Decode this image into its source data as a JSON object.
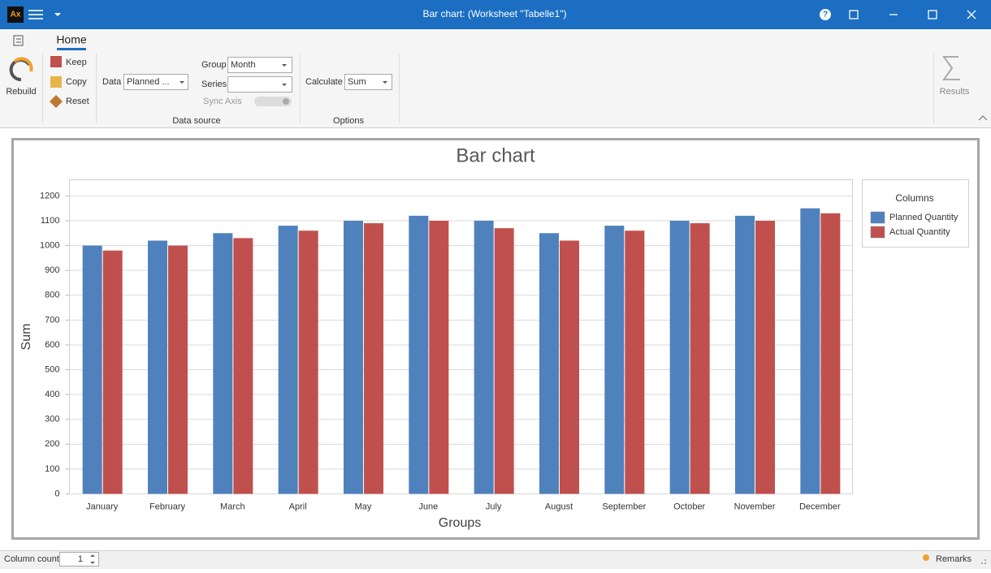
{
  "title_bar": {
    "app_icon": "Ax",
    "title": "Bar chart:  (Worksheet \"Tabelle1\")",
    "help": "?"
  },
  "ribbon": {
    "tab": "Home",
    "rebuild": "Rebuild",
    "keep": "Keep",
    "copy": "Copy",
    "reset": "Reset",
    "data_label": "Data",
    "data_value": "Planned ...",
    "group_label": "Group",
    "group_value": "Month",
    "series_label": "Series",
    "sync_axis": "Sync Axis",
    "calculate_label": "Calculate",
    "calculate_value": "Sum",
    "data_source_group": "Data source",
    "options_group": "Options",
    "results": "Results"
  },
  "chart_data": {
    "type": "bar",
    "title": "Bar chart",
    "x_label": "Groups",
    "y_label": "Sum",
    "categories": [
      "January",
      "February",
      "March",
      "April",
      "May",
      "June",
      "July",
      "August",
      "September",
      "October",
      "November",
      "December"
    ],
    "series": [
      {
        "name": "Planned Quantity",
        "color": "#4f81bd",
        "values": [
          1000,
          1020,
          1050,
          1080,
          1100,
          1120,
          1100,
          1050,
          1080,
          1100,
          1120,
          1150
        ]
      },
      {
        "name": "Actual Quantity",
        "color": "#c0504d",
        "values": [
          980,
          1000,
          1030,
          1060,
          1090,
          1100,
          1070,
          1020,
          1060,
          1090,
          1100,
          1130
        ]
      }
    ],
    "ylim": [
      0,
      1265
    ],
    "yticks": [
      0,
      100,
      200,
      300,
      400,
      500,
      600,
      700,
      800,
      900,
      1000,
      1100,
      1200
    ],
    "grid": true,
    "legend_title": "Columns",
    "legend_position": "right"
  },
  "status_bar": {
    "column_count_label": "Column count",
    "column_count_value": "1",
    "remarks": "Remarks"
  }
}
